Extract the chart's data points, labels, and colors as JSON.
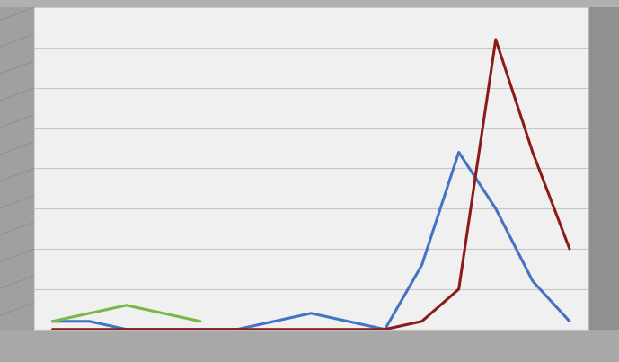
{
  "blue_series": [
    1,
    1,
    0,
    0,
    0,
    0,
    1,
    2,
    1,
    0,
    8,
    22,
    15,
    6,
    1
  ],
  "red_series": [
    0,
    0,
    0,
    0,
    0,
    0,
    0,
    0,
    0,
    0,
    1,
    5,
    36,
    22,
    10
  ],
  "green_x": [
    0,
    1,
    2,
    3,
    4
  ],
  "green_y": [
    1,
    2,
    3,
    2,
    1
  ],
  "blue_color": "#4472C4",
  "red_color": "#8B1A1A",
  "green_color": "#7AB648",
  "bg_outer": "#B0B0B0",
  "bg_inner": "#F0F0F0",
  "grid_color": "#C8C8C8",
  "n_points": 15,
  "ylim": [
    0,
    40
  ],
  "line_width": 2.2,
  "left_panel_color": "#A0A0A0",
  "right_panel_color": "#909090",
  "bottom_panel_color": "#A8A8A8"
}
